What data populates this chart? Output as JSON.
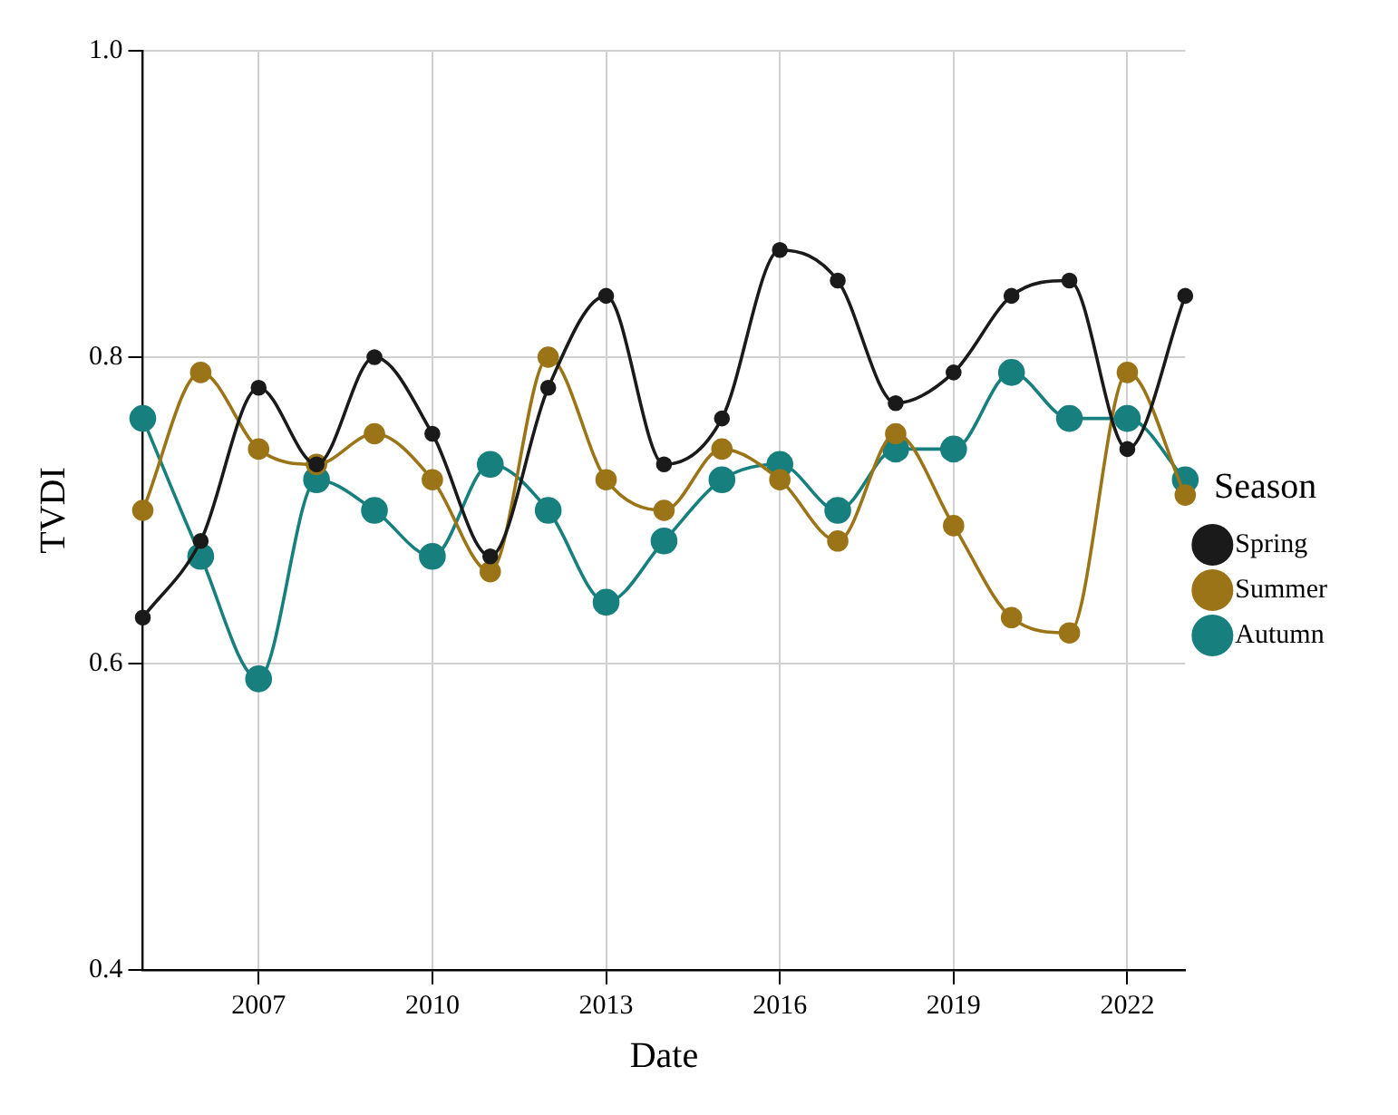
{
  "chart_data": {
    "type": "line",
    "xlabel": "Date",
    "ylabel": "TVDI",
    "legend_title": "Season",
    "x": [
      2005,
      2006,
      2007,
      2008,
      2009,
      2010,
      2011,
      2012,
      2013,
      2014,
      2015,
      2016,
      2017,
      2018,
      2019,
      2020,
      2021,
      2022,
      2023
    ],
    "series": [
      {
        "name": "Spring",
        "color": "#1a1a1a",
        "values": [
          0.63,
          0.68,
          0.78,
          0.73,
          0.8,
          0.75,
          0.67,
          0.78,
          0.84,
          0.73,
          0.76,
          0.87,
          0.85,
          0.77,
          0.79,
          0.84,
          0.85,
          0.74,
          0.84
        ]
      },
      {
        "name": "Summer",
        "color": "#9a7416",
        "values": [
          0.7,
          0.79,
          0.74,
          0.73,
          0.75,
          0.72,
          0.66,
          0.8,
          0.72,
          0.7,
          0.74,
          0.72,
          0.68,
          0.75,
          0.69,
          0.63,
          0.62,
          0.79,
          0.71
        ]
      },
      {
        "name": "Autumn",
        "color": "#17807e",
        "values": [
          0.76,
          0.67,
          0.59,
          0.72,
          0.7,
          0.67,
          0.73,
          0.7,
          0.64,
          0.68,
          0.72,
          0.73,
          0.7,
          0.74,
          0.74,
          0.79,
          0.76,
          0.76,
          0.72
        ]
      }
    ],
    "xlim": [
      2005,
      2023
    ],
    "xticks": [
      2007,
      2010,
      2013,
      2016,
      2019,
      2022
    ],
    "ylim": [
      0.4,
      1.0
    ],
    "yticks": [
      0.4,
      0.6,
      0.8,
      {
        "value": 1,
        "label": "1.0"
      }
    ],
    "grid": true,
    "legend": "right",
    "marker": "circle",
    "line_style": "solid"
  }
}
